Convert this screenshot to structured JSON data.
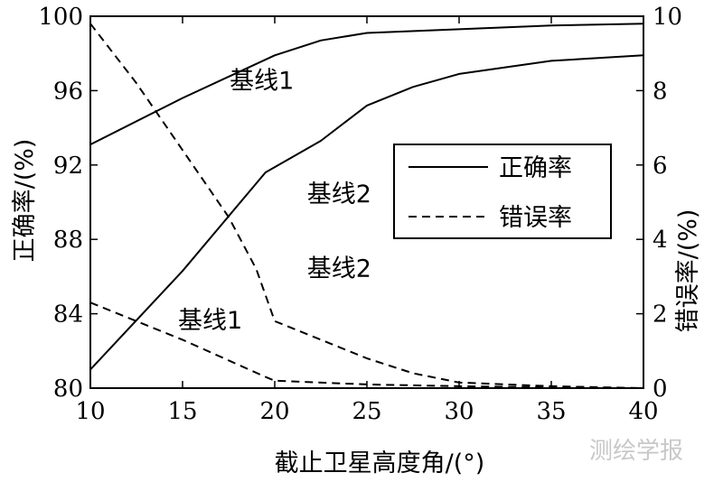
{
  "chart_data": {
    "type": "line",
    "xlabel": "截止卫星高度角/(°)",
    "ylabel_left": "正确率/(%)",
    "ylabel_right": "错误率/(%)",
    "xlim": [
      10,
      40
    ],
    "ylim_left": [
      80,
      100
    ],
    "ylim_right": [
      0,
      10
    ],
    "xticks": [
      "10",
      "15",
      "20",
      "25",
      "30",
      "35",
      "40"
    ],
    "yticks_left": [
      "80",
      "84",
      "88",
      "92",
      "96",
      "100"
    ],
    "yticks_right": [
      "0",
      "2",
      "4",
      "6",
      "8",
      "10"
    ],
    "grid": false,
    "legend_position": "upper-right",
    "legend": [
      {
        "label": "正确率",
        "style": "solid"
      },
      {
        "label": "错误率",
        "style": "dashed"
      }
    ],
    "series": [
      {
        "label": "基线1",
        "metric": "正确率",
        "axis": "left",
        "style": "solid",
        "x": [
          10,
          15,
          20,
          22.5,
          25,
          30,
          35,
          40
        ],
        "y": [
          93.1,
          95.6,
          97.9,
          98.7,
          99.1,
          99.3,
          99.5,
          99.6
        ]
      },
      {
        "label": "基线2",
        "metric": "正确率",
        "axis": "left",
        "style": "solid",
        "x": [
          10,
          15,
          19.5,
          22.5,
          25,
          27.5,
          30,
          35,
          40
        ],
        "y": [
          81.0,
          86.3,
          91.6,
          93.3,
          95.2,
          96.2,
          96.9,
          97.6,
          97.9
        ]
      },
      {
        "label": "基线2",
        "metric": "错误率",
        "axis": "right",
        "style": "dashed",
        "x": [
          10,
          12.5,
          15,
          17.5,
          19,
          20,
          22.5,
          25,
          27.5,
          30,
          35,
          40
        ],
        "y": [
          9.8,
          8.2,
          6.4,
          4.6,
          3.2,
          1.8,
          1.3,
          0.8,
          0.4,
          0.15,
          0.05,
          0.0
        ]
      },
      {
        "label": "基线1",
        "metric": "错误率",
        "axis": "right",
        "style": "dashed",
        "x": [
          10,
          15,
          19.5,
          20,
          25,
          30,
          35,
          40
        ],
        "y": [
          2.3,
          1.3,
          0.3,
          0.2,
          0.1,
          0.05,
          0.02,
          0.0
        ]
      }
    ],
    "annotations": [
      {
        "text": "基线1",
        "x": 19.3,
        "y": 96.1,
        "axis": "left"
      },
      {
        "text": "基线2",
        "x": 23.5,
        "y": 90.0,
        "axis": "left"
      },
      {
        "text": "基线2",
        "x": 23.5,
        "y": 3.0,
        "axis": "right"
      },
      {
        "text": "基线1",
        "x": 16.5,
        "y": 1.6,
        "axis": "right"
      }
    ]
  },
  "watermark": "测绘学报"
}
